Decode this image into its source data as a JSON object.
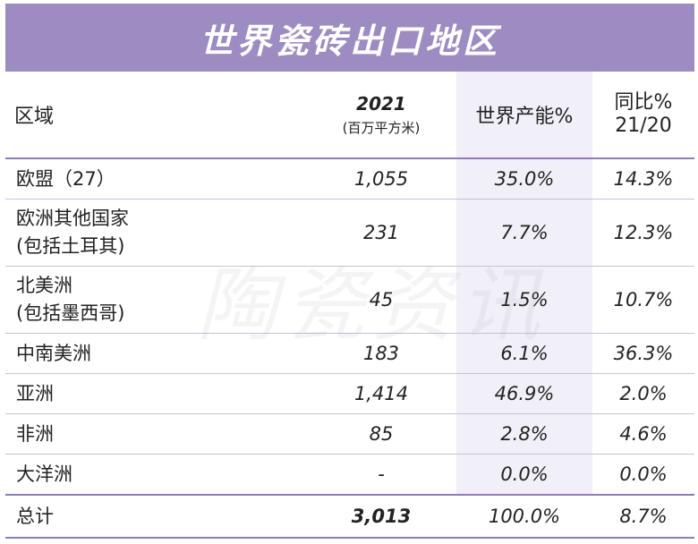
{
  "chart_data": {
    "type": "table",
    "title": "世界瓷砖出口地区",
    "columns": {
      "region": "区域",
      "volume_year": "2021",
      "volume_unit": "(百万平方米)",
      "share": "世界产能%",
      "yoy_line1": "同比%",
      "yoy_line2": "21/20"
    },
    "rows": [
      {
        "region": [
          "欧盟（27）"
        ],
        "volume": "1,055",
        "share": "35.0%",
        "yoy": "14.3%"
      },
      {
        "region": [
          "欧洲其他国家",
          "(包括土耳其)"
        ],
        "volume": "231",
        "share": "7.7%",
        "yoy": "12.3%"
      },
      {
        "region": [
          "北美洲",
          "(包括墨西哥)"
        ],
        "volume": "45",
        "share": "1.5%",
        "yoy": "10.7%"
      },
      {
        "region": [
          "中南美洲"
        ],
        "volume": "183",
        "share": "6.1%",
        "yoy": "36.3%"
      },
      {
        "region": [
          "亚洲"
        ],
        "volume": "1,414",
        "share": "46.9%",
        "yoy": "2.0%"
      },
      {
        "region": [
          "非洲"
        ],
        "volume": "85",
        "share": "2.8%",
        "yoy": "4.6%"
      },
      {
        "region": [
          "大洋洲"
        ],
        "volume": "-",
        "share": "0.0%",
        "yoy": "0.0%"
      }
    ],
    "total": {
      "region": "总计",
      "volume": "3,013",
      "share": "100.0%",
      "yoy": "8.7%"
    },
    "colors": {
      "header_band": "#9c8cc2",
      "share_column_shade": "#f1eff8",
      "rule": "#8e7dbb"
    }
  },
  "watermark": "陶瓷资讯"
}
